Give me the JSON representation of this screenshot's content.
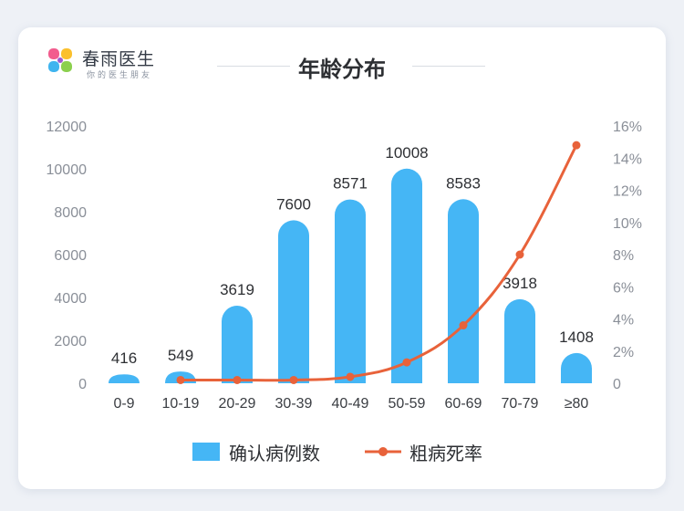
{
  "brand": {
    "name": "春雨医生",
    "slogan": "你的医生朋友"
  },
  "chart_data": {
    "type": "bar",
    "title": "年龄分布",
    "categories": [
      "0-9",
      "10-19",
      "20-29",
      "30-39",
      "40-49",
      "50-59",
      "60-69",
      "70-79",
      "≥80"
    ],
    "series": [
      {
        "name": "确认病例数",
        "kind": "bar",
        "axis": "left",
        "color": "#45b6f5",
        "values": [
          416,
          549,
          3619,
          7600,
          8571,
          10008,
          8583,
          3918,
          1408
        ],
        "data_labels": [
          "416",
          "549",
          "3619",
          "7600",
          "8571",
          "10008",
          "8583",
          "3918",
          "1408"
        ]
      },
      {
        "name": "粗病死率",
        "kind": "line",
        "axis": "right",
        "color": "#e8623a",
        "values": [
          null,
          0.2,
          0.2,
          0.2,
          0.4,
          1.3,
          3.6,
          8.0,
          14.8
        ]
      }
    ],
    "y_left": {
      "min": 0,
      "max": 12000,
      "ticks": [
        0,
        2000,
        4000,
        6000,
        8000,
        10000,
        12000
      ],
      "tick_labels": [
        "0",
        "2000",
        "4000",
        "6000",
        "8000",
        "10000",
        "12000"
      ]
    },
    "y_right": {
      "min": 0,
      "max": 16,
      "ticks": [
        0,
        2,
        4,
        6,
        8,
        10,
        12,
        14,
        16
      ],
      "tick_labels": [
        "0",
        "2%",
        "4%",
        "6%",
        "8%",
        "10%",
        "12%",
        "14%",
        "16%"
      ]
    },
    "grid": false,
    "legend_position": "bottom"
  }
}
